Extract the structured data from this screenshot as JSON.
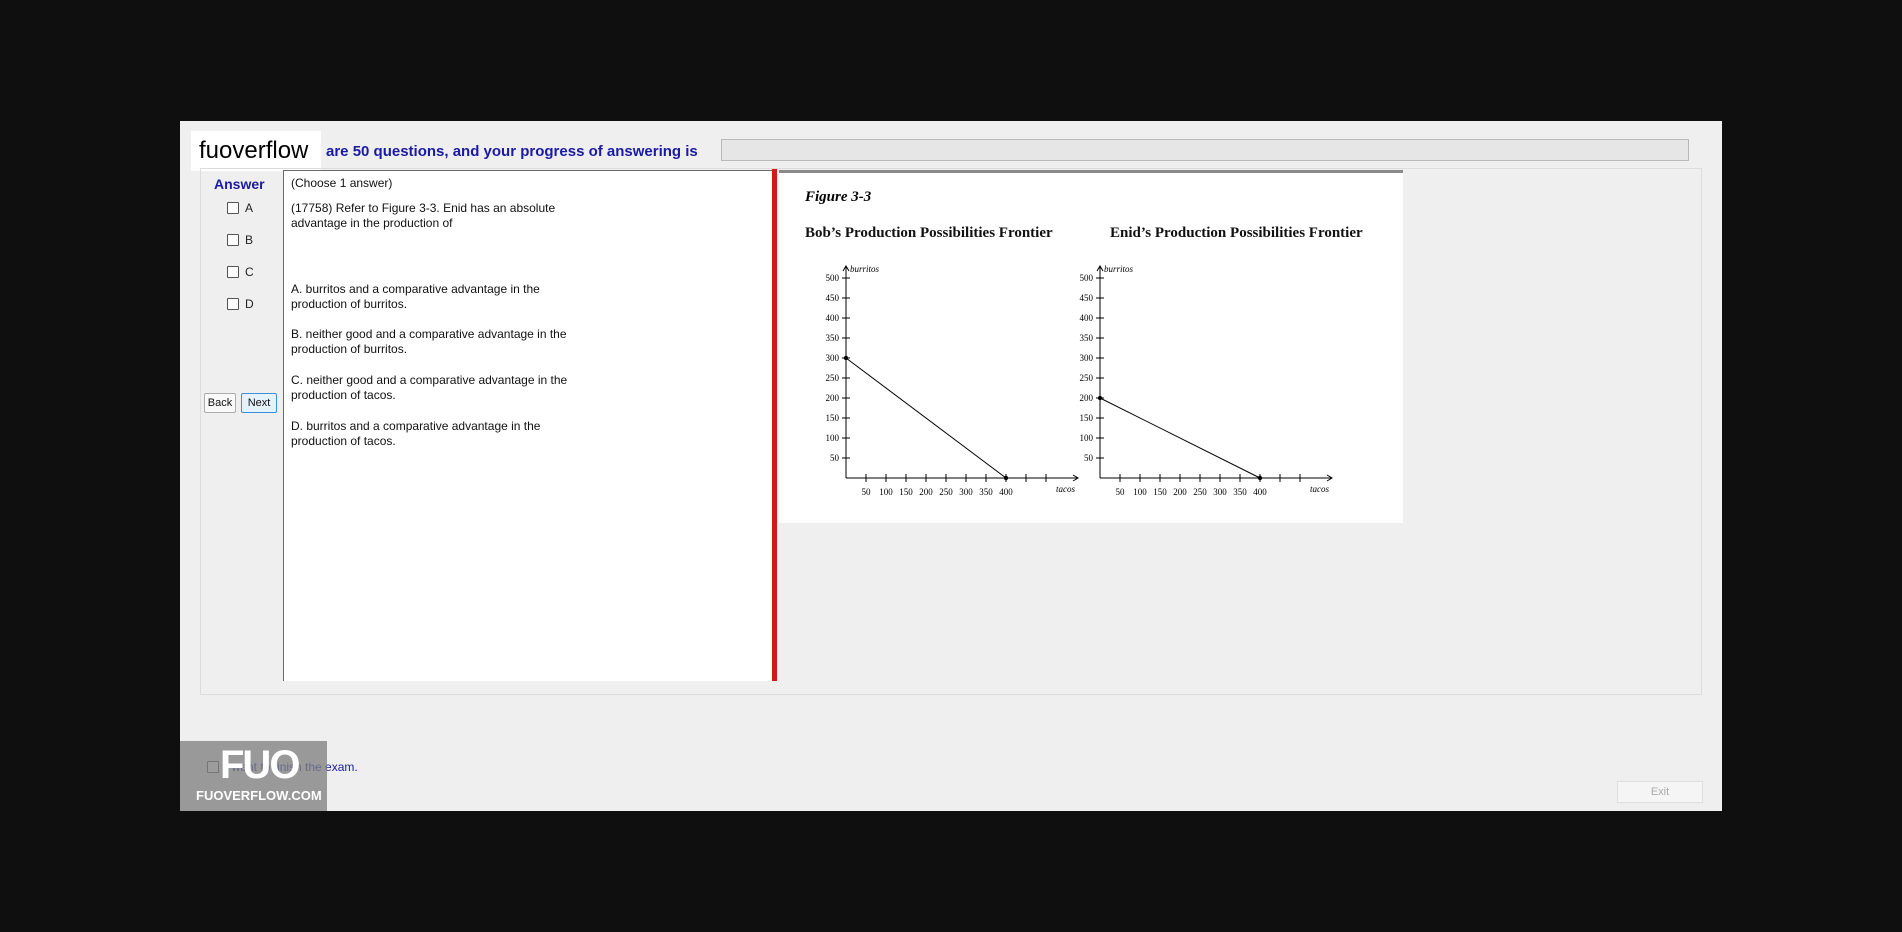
{
  "header": {
    "watermark": "fuoverflow",
    "text": "are 50 questions, and your progress of answering is",
    "progress": 0
  },
  "answer": {
    "heading": "Answer",
    "options": [
      "A",
      "B",
      "C",
      "D"
    ],
    "back_label": "Back",
    "next_label": "Next"
  },
  "question": {
    "instruction": "(Choose 1 answer)",
    "stem_line1": "(17758)  Refer to Figure 3-3.  Enid has an absolute",
    "stem_line2": "advantage in the production of",
    "choices": [
      {
        "line1": "A.  burritos and a comparative advantage in the",
        "line2": "production of burritos."
      },
      {
        "line1": "B.  neither good and a comparative advantage in the",
        "line2": "production of burritos."
      },
      {
        "line1": "C.  neither good and a comparative advantage in the",
        "line2": "production of tacos."
      },
      {
        "line1": "D.  burritos and a comparative advantage in the",
        "line2": "production of tacos."
      }
    ]
  },
  "figure": {
    "title": "Figure 3-3",
    "charts": [
      {
        "title": "Bob’s Production Possibilities Frontier",
        "ylabel": "burritos",
        "xlabel": "tacos",
        "y_ticks": [
          "500",
          "450",
          "400",
          "350",
          "300",
          "250",
          "200",
          "150",
          "100",
          "50"
        ],
        "x_ticks": [
          "50",
          "100",
          "150",
          "200",
          "250",
          "300",
          "350",
          "400"
        ],
        "line": {
          "y_intercept": 300,
          "x_intercept": 400
        }
      },
      {
        "title": "Enid’s Production Possibilities Frontier",
        "ylabel": "burritos",
        "xlabel": "tacos",
        "y_ticks": [
          "500",
          "450",
          "400",
          "350",
          "300",
          "250",
          "200",
          "150",
          "100",
          "50"
        ],
        "x_ticks": [
          "50",
          "100",
          "150",
          "200",
          "250",
          "300",
          "350",
          "400"
        ],
        "line": {
          "y_intercept": 200,
          "x_intercept": 400
        }
      }
    ]
  },
  "footer": {
    "finish_label": "I want to finish the exam.",
    "exit_label": "Exit",
    "watermark_logo": "FUO",
    "watermark_site": "FUOVERFLOW.COM"
  }
}
